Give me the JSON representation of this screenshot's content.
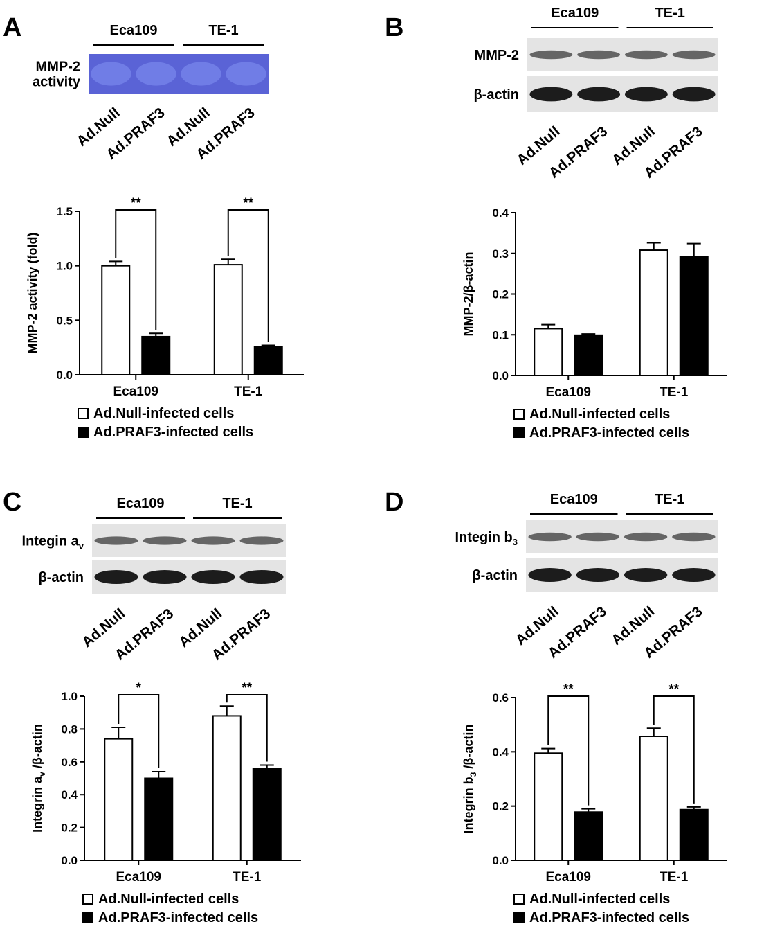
{
  "panels": [
    {
      "label": "A",
      "groups": [
        "Eca109",
        "TE-1"
      ],
      "lanes": [
        "Ad.Null",
        "Ad.PRAF3",
        "Ad.Null",
        "Ad.PRAF3"
      ],
      "rows": [
        {
          "label": [
            {
              "text": "MMP-2"
            },
            {
              "text": "activity",
              "newline": true
            }
          ],
          "color": "#5a63d6"
        }
      ]
    },
    {
      "label": "B",
      "groups": [
        "Eca109",
        "TE-1"
      ],
      "lanes": [
        "Ad.Null",
        "Ad.PRAF3",
        "Ad.Null",
        "Ad.PRAF3"
      ],
      "rows": [
        {
          "label": [
            {
              "text": "MMP-2"
            }
          ],
          "color": "#e4e4e4"
        },
        {
          "label": [
            {
              "text": "β-actin"
            }
          ],
          "color": "#e4e4e4"
        }
      ]
    },
    {
      "label": "C",
      "groups": [
        "Eca109",
        "TE-1"
      ],
      "lanes": [
        "Ad.Null",
        "Ad.PRAF3",
        "Ad.Null",
        "Ad.PRAF3"
      ],
      "rows": [
        {
          "label": [
            {
              "text": "Integin a"
            },
            {
              "text": "v",
              "sub": true
            }
          ],
          "color": "#e4e4e4"
        },
        {
          "label": [
            {
              "text": "β-actin"
            }
          ],
          "color": "#e4e4e4"
        }
      ]
    },
    {
      "label": "D",
      "groups": [
        "Eca109",
        "TE-1"
      ],
      "lanes": [
        "Ad.Null",
        "Ad.PRAF3",
        "Ad.Null",
        "Ad.PRAF3"
      ],
      "rows": [
        {
          "label": [
            {
              "text": "Integin b"
            },
            {
              "text": "3",
              "sub": true
            }
          ],
          "color": "#e4e4e4"
        },
        {
          "label": [
            {
              "text": "β-actin"
            }
          ],
          "color": "#e4e4e4"
        }
      ]
    }
  ],
  "chart_data": [
    {
      "type": "bar",
      "categories": [
        "Eca109",
        "TE-1"
      ],
      "ylabel": [
        {
          "text": "MMP-2 activity (fold)"
        }
      ],
      "ylim": [
        0,
        1.5
      ],
      "yticks": [
        {
          "value": 0,
          "label": "0.0"
        },
        {
          "value": 0.5,
          "label": "0.5"
        },
        {
          "value": 1,
          "label": "1.0"
        },
        {
          "value": 1.5,
          "label": "1.5"
        }
      ],
      "series": [
        {
          "name": "Ad.Null-infected cells",
          "color": "#ffffff",
          "values": [
            1.0,
            1.01
          ],
          "errors": [
            0.04,
            0.05
          ]
        },
        {
          "name": "Ad.PRAF3-infected cells",
          "color": "#000000",
          "values": [
            0.35,
            0.26
          ],
          "errors": [
            0.03,
            0.01
          ]
        }
      ],
      "significance": [
        "**",
        "**"
      ]
    },
    {
      "type": "bar",
      "categories": [
        "Eca109",
        "TE-1"
      ],
      "ylabel": [
        {
          "text": "MMP-2/β-actin"
        }
      ],
      "ylim": [
        0,
        0.4
      ],
      "yticks": [
        {
          "value": 0,
          "label": "0.0"
        },
        0.1,
        0.2,
        0.3,
        0.4
      ],
      "series": [
        {
          "name": "Ad.Null-infected cells",
          "color": "#ffffff",
          "values": [
            0.115,
            0.308
          ],
          "errors": [
            0.01,
            0.018
          ]
        },
        {
          "name": "Ad.PRAF3-infected cells",
          "color": "#000000",
          "values": [
            0.099,
            0.292
          ],
          "errors": [
            0.003,
            0.032
          ]
        }
      ]
    },
    {
      "type": "bar",
      "categories": [
        "Eca109",
        "TE-1"
      ],
      "ylabel": [
        {
          "text": "Integrin a"
        },
        {
          "text": "v",
          "sub": true
        },
        {
          "text": " /β-actin"
        }
      ],
      "ylim": [
        0,
        1
      ],
      "yticks": [
        {
          "value": 0,
          "label": "0.0"
        },
        0.2,
        0.4,
        0.6,
        0.8,
        {
          "value": 1,
          "label": "1.0"
        }
      ],
      "series": [
        {
          "name": "Ad.Null-infected cells",
          "color": "#ffffff",
          "values": [
            0.74,
            0.88
          ],
          "errors": [
            0.07,
            0.06
          ]
        },
        {
          "name": "Ad.PRAF3-infected cells",
          "color": "#000000",
          "values": [
            0.5,
            0.56
          ],
          "errors": [
            0.04,
            0.02
          ]
        }
      ],
      "significance": [
        "*",
        "**"
      ]
    },
    {
      "type": "bar",
      "categories": [
        "Eca109",
        "TE-1"
      ],
      "ylabel": [
        {
          "text": "Integrin b"
        },
        {
          "text": "3",
          "sub": true
        },
        {
          "text": " /β-actin"
        }
      ],
      "ylim": [
        0,
        0.6
      ],
      "yticks": [
        {
          "value": 0,
          "label": "0.0"
        },
        0.2,
        0.4,
        0.6
      ],
      "series": [
        {
          "name": "Ad.Null-infected cells",
          "color": "#ffffff",
          "values": [
            0.395,
            0.457
          ],
          "errors": [
            0.017,
            0.03
          ]
        },
        {
          "name": "Ad.PRAF3-infected cells",
          "color": "#000000",
          "values": [
            0.178,
            0.187
          ],
          "errors": [
            0.012,
            0.01
          ]
        }
      ],
      "significance": [
        "**",
        "**"
      ]
    }
  ]
}
